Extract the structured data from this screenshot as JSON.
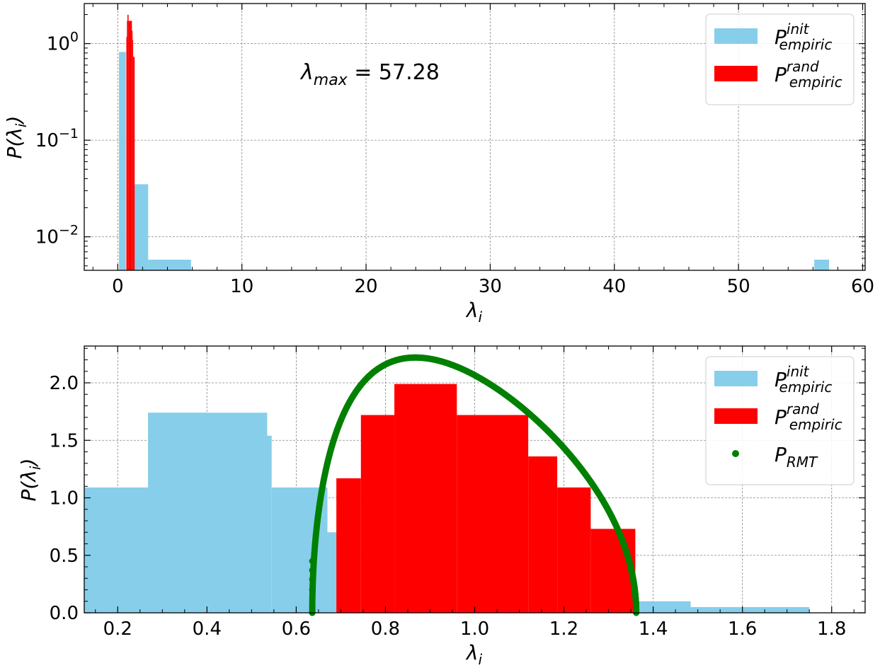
{
  "chart_data": [
    {
      "type": "bar",
      "panel": "top",
      "yscale": "log",
      "xlim": [
        -2.7,
        60.2
      ],
      "ylim": [
        0.0045,
        2.6
      ],
      "xticks": [
        0,
        10,
        20,
        30,
        40,
        50,
        60
      ],
      "xtick_labels": [
        "0",
        "10",
        "20",
        "30",
        "40",
        "50",
        "60"
      ],
      "yticks": [
        0.01,
        0.1,
        1
      ],
      "ytick_labels": [
        {
          "base": "10",
          "exp": "−2"
        },
        {
          "base": "10",
          "exp": "−1"
        },
        {
          "base": "10",
          "exp": "0"
        }
      ],
      "xlabel": {
        "base": "λ",
        "sub": "i"
      },
      "ylabel": {
        "pre": "P(",
        "base": "λ",
        "sub": "i",
        "post": ")"
      },
      "grid": true,
      "legend_position": "top-right",
      "annotation": {
        "base": "λ",
        "sub": "max",
        "rest": " = 57.28"
      },
      "series": [
        {
          "name": {
            "base": "P",
            "sub": "empiric",
            "sup": "init"
          },
          "color": "#87CEEB",
          "bins": [
            {
              "x0": 0.1,
              "x1": 0.65,
              "y": 0.82
            },
            {
              "x0": 1.35,
              "x1": 2.45,
              "y": 0.035
            },
            {
              "x0": 2.45,
              "x1": 5.9,
              "y": 0.0058
            },
            {
              "x0": 56.1,
              "x1": 57.3,
              "y": 0.0058
            }
          ]
        },
        {
          "name": {
            "base": "P",
            "sub": "empiric",
            "sup": "rand"
          },
          "color": "#FF0000",
          "bins": [
            {
              "x0": 0.69,
              "x1": 0.74,
              "y": 1.17
            },
            {
              "x0": 0.74,
              "x1": 0.78,
              "y": 1.72
            },
            {
              "x0": 0.78,
              "x1": 0.87,
              "y": 1.99
            },
            {
              "x0": 0.87,
              "x1": 0.95,
              "y": 1.72
            },
            {
              "x0": 0.95,
              "x1": 1.14,
              "y": 1.72
            },
            {
              "x0": 1.14,
              "x1": 1.18,
              "y": 1.36
            },
            {
              "x0": 1.18,
              "x1": 1.24,
              "y": 1.09
            },
            {
              "x0": 1.24,
              "x1": 1.36,
              "y": 0.73
            }
          ]
        }
      ]
    },
    {
      "type": "bar",
      "panel": "bottom",
      "yscale": "linear",
      "xlim": [
        0.125,
        1.875
      ],
      "ylim": [
        0.0,
        2.32
      ],
      "xticks": [
        0.2,
        0.4,
        0.6,
        0.8,
        1.0,
        1.2,
        1.4,
        1.6,
        1.8
      ],
      "xtick_labels": [
        "0.2",
        "0.4",
        "0.6",
        "0.8",
        "1.0",
        "1.2",
        "1.4",
        "1.6",
        "1.8"
      ],
      "yticks": [
        0.0,
        0.5,
        1.0,
        1.5,
        2.0
      ],
      "ytick_labels": [
        "0.0",
        "0.5",
        "1.0",
        "1.5",
        "2.0"
      ],
      "xlabel": {
        "base": "λ",
        "sub": "i"
      },
      "ylabel": {
        "pre": "P(",
        "base": "λ",
        "sub": "i",
        "post": ")"
      },
      "grid": true,
      "legend_position": "top-right",
      "series": [
        {
          "name": {
            "base": "P",
            "sub": "empiric",
            "sup": "init"
          },
          "color": "#87CEEB",
          "bins": [
            {
              "x0": 0.125,
              "x1": 0.268,
              "y": 1.09
            },
            {
              "x0": 0.268,
              "x1": 0.535,
              "y": 1.74
            },
            {
              "x0": 0.535,
              "x1": 0.545,
              "y": 1.54
            },
            {
              "x0": 0.545,
              "x1": 0.67,
              "y": 1.09
            },
            {
              "x0": 0.67,
              "x1": 0.69,
              "y": 0.7
            },
            {
              "x0": 1.36,
              "x1": 1.484,
              "y": 0.1
            },
            {
              "x0": 1.484,
              "x1": 1.75,
              "y": 0.05
            }
          ],
          "note_bins": [
            {
              "x0": 0.268,
              "x1": 0.402,
              "y": 1.74
            },
            {
              "x0": 0.402,
              "x1": 0.535,
              "y": 1.54
            }
          ]
        },
        {
          "name": {
            "base": "P",
            "sub": "empiric",
            "sup": "rand"
          },
          "color": "#FF0000",
          "bins": [
            {
              "x0": 0.69,
              "x1": 0.745,
              "y": 1.17
            },
            {
              "x0": 0.745,
              "x1": 0.82,
              "y": 1.72
            },
            {
              "x0": 0.82,
              "x1": 0.96,
              "y": 1.99
            },
            {
              "x0": 0.96,
              "x1": 1.12,
              "y": 1.72
            },
            {
              "x0": 1.12,
              "x1": 1.185,
              "y": 1.36
            },
            {
              "x0": 1.185,
              "x1": 1.26,
              "y": 1.09
            },
            {
              "x0": 1.26,
              "x1": 1.36,
              "y": 0.73
            }
          ]
        },
        {
          "name": {
            "base": "P",
            "sub": "RMT"
          },
          "color": "#008000",
          "kind": "scatter",
          "curve": {
            "lambda_min": 0.636,
            "lambda_max": 1.362,
            "peak_x": 0.868,
            "peak_y": 2.22,
            "points": 180
          }
        }
      ]
    }
  ]
}
